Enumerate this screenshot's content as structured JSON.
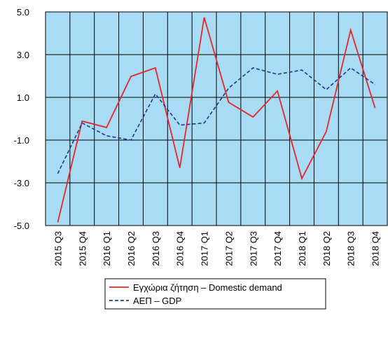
{
  "chart_data": {
    "type": "line",
    "categories": [
      "2015 Q3",
      "2015 Q4",
      "2016 Q1",
      "2016 Q2",
      "2016 Q3",
      "2016 Q4",
      "2017 Q1",
      "2017 Q2",
      "2017 Q3",
      "2017 Q4",
      "2018 Q1",
      "2018 Q2",
      "2018 Q3",
      "2018 Q4"
    ],
    "series": [
      {
        "name": "Εγχώρια ζήτηση – Domestic demand",
        "color": "#e8242c",
        "style": "solid",
        "values": [
          -4.85,
          -0.11,
          -0.41,
          1.98,
          2.38,
          -2.3,
          4.74,
          0.77,
          0.08,
          1.3,
          -2.8,
          -0.6,
          4.15,
          0.5
        ]
      },
      {
        "name": "ΑΕΠ – GDP",
        "color": "#1f3a8c",
        "style": "dashed",
        "values": [
          -2.57,
          -0.2,
          -0.8,
          -1.0,
          1.16,
          -0.3,
          -0.2,
          1.43,
          2.38,
          2.08,
          2.28,
          1.36,
          2.38,
          1.6
        ]
      }
    ],
    "ylim": [
      -5,
      5
    ],
    "yticks": [
      {
        "value": -5,
        "label": "-5.0"
      },
      {
        "value": -3,
        "label": "-3.0"
      },
      {
        "value": -1,
        "label": "-1.0"
      },
      {
        "value": 1,
        "label": "1.0"
      },
      {
        "value": 3,
        "label": "3.0"
      },
      {
        "value": 5,
        "label": "5.0"
      }
    ],
    "grid": true,
    "background": "#a8dcf4",
    "legend": "bottom"
  }
}
